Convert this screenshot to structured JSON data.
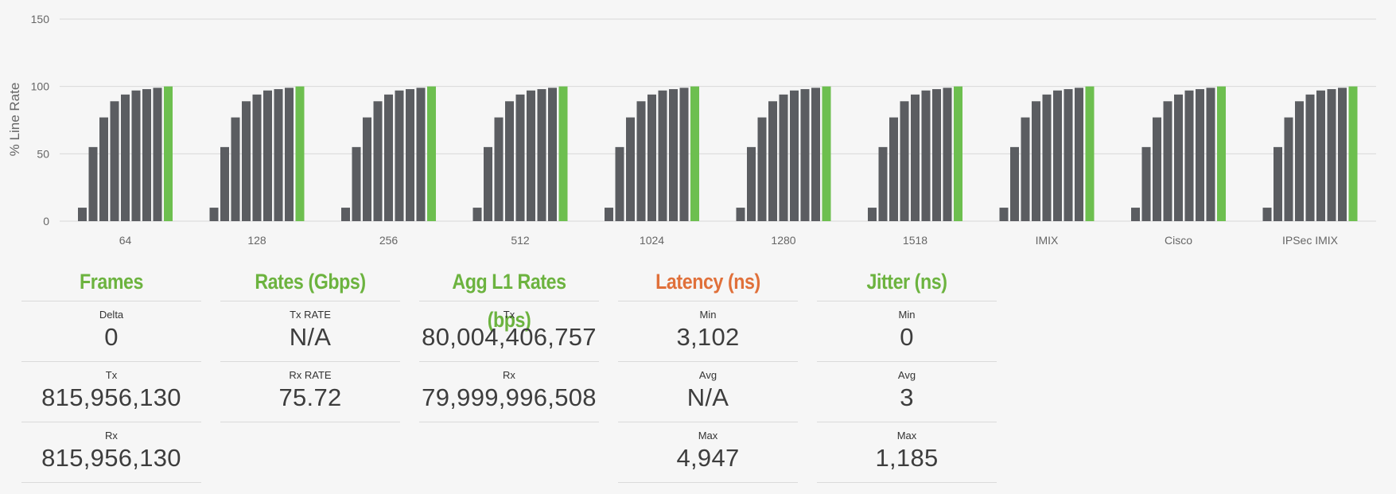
{
  "chart_data": {
    "type": "bar",
    "ylabel": "% Line Rate",
    "ylim": [
      0,
      150
    ],
    "yticks": [
      0,
      50,
      100,
      150
    ],
    "grid": true,
    "categories": [
      "64",
      "128",
      "256",
      "512",
      "1024",
      "1280",
      "1518",
      "IMIX",
      "Cisco",
      "IPSec IMIX"
    ],
    "bars_per_group": 9,
    "values_per_group": [
      10,
      55,
      77,
      89,
      94,
      97,
      98,
      99,
      100
    ],
    "colors": {
      "bar": "#5b5d61",
      "highlight": "#6dbf4f",
      "grid": "#d8d8d8",
      "tick": "#666666"
    }
  },
  "panels": [
    {
      "title": "Frames",
      "title_color": "green",
      "metrics": [
        {
          "label": "Delta",
          "value": "0"
        },
        {
          "label": "Tx",
          "value": "815,956,130"
        },
        {
          "label": "Rx",
          "value": "815,956,130"
        }
      ]
    },
    {
      "title": "Rates (Gbps)",
      "title_color": "green",
      "metrics": [
        {
          "label": "Tx RATE",
          "value": "N/A"
        },
        {
          "label": "Rx RATE",
          "value": "75.72"
        }
      ]
    },
    {
      "title": "Agg L1 Rates (bps)",
      "title_color": "green",
      "metrics": [
        {
          "label": "Tx",
          "value": "80,004,406,757"
        },
        {
          "label": "Rx",
          "value": "79,999,996,508"
        }
      ]
    },
    {
      "title": "Latency (ns)",
      "title_color": "orange",
      "metrics": [
        {
          "label": "Min",
          "value": "3,102"
        },
        {
          "label": "Avg",
          "value": "N/A"
        },
        {
          "label": "Max",
          "value": "4,947"
        }
      ]
    },
    {
      "title": "Jitter (ns)",
      "title_color": "green",
      "metrics": [
        {
          "label": "Min",
          "value": "0"
        },
        {
          "label": "Avg",
          "value": "3"
        },
        {
          "label": "Max",
          "value": "1,185"
        }
      ]
    }
  ]
}
